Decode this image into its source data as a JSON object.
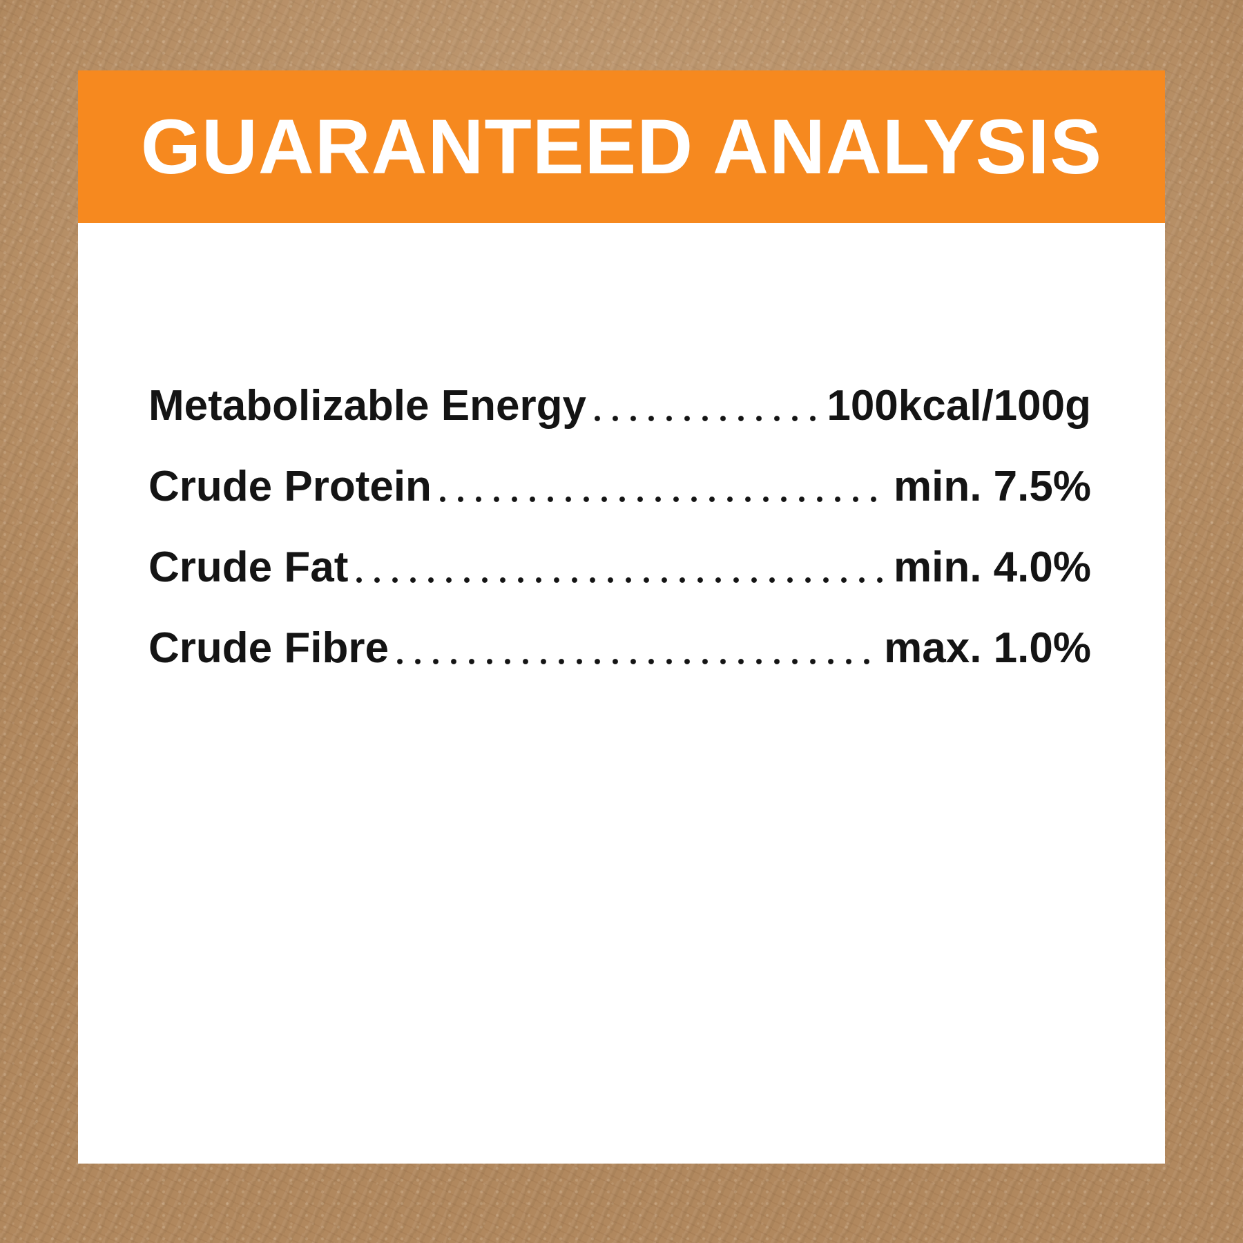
{
  "page": {
    "background_color": "#B1885E",
    "card_color": "#FFFFFF",
    "header_color": "#F6891F",
    "title_color": "#FFFFFF",
    "text_color": "#141414"
  },
  "label": {
    "title": "GUARANTEED ANALYSIS",
    "rows": [
      {
        "name": "Metabolizable Energy",
        "value": "100kcal/100g"
      },
      {
        "name": "Crude Protein",
        "value": "min. 7.5%"
      },
      {
        "name": "Crude Fat",
        "value": "min. 4.0%"
      },
      {
        "name": "Crude Fibre",
        "value": "max. 1.0%"
      }
    ]
  }
}
